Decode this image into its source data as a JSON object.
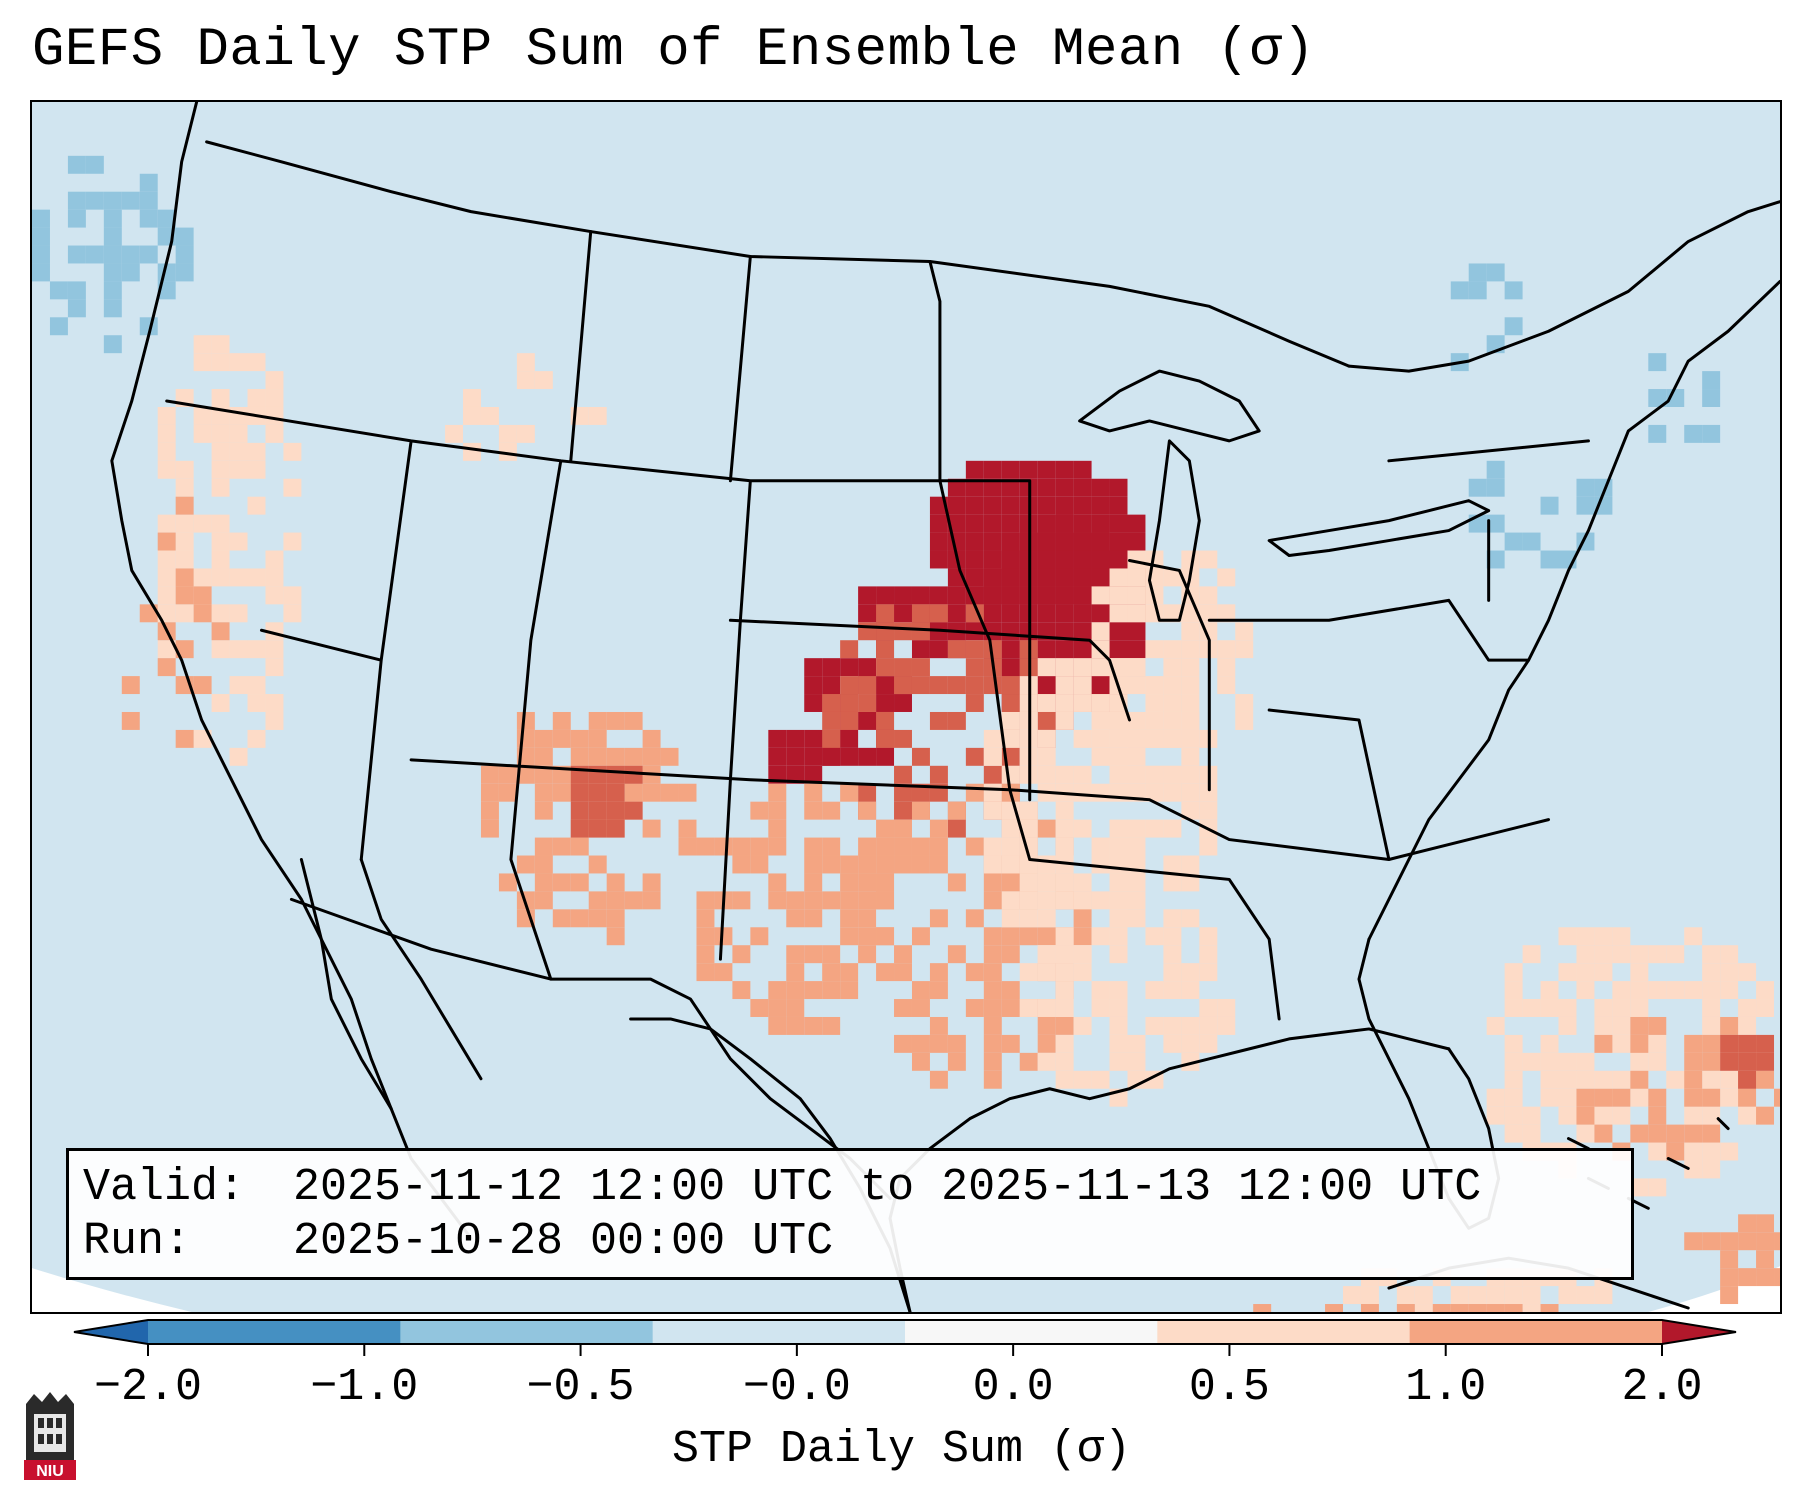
{
  "title": "GEFS Daily STP Sum of Ensemble Mean (σ)",
  "info": {
    "valid_label": "Valid:",
    "valid_value": "2025-11-12 12:00 UTC to 2025-11-13 12:00 UTC",
    "run_label": "Run:",
    "run_value": "2025-10-28 00:00 UTC"
  },
  "colorbar": {
    "title": "STP Daily Sum (σ)",
    "ticks": [
      "−2.0",
      "−1.0",
      "−0.5",
      "−0.0",
      "0.0",
      "0.5",
      "1.0",
      "2.0"
    ],
    "colors": [
      "#4590c2",
      "#92c5de",
      "#d1e5f0",
      "#f7f7f7",
      "#fddbc7",
      "#f4a582",
      "#d6604d",
      "#b2182b"
    ]
  },
  "logo": {
    "text": "NIU"
  },
  "map": {
    "background_color": "#d1e5f0",
    "anomaly_regions": [
      {
        "region": "Iowa / northern Missouri / western Illinois",
        "class": "≥ 2.0"
      },
      {
        "region": "Kansas / Oklahoma diagonal band",
        "class": "1.0 to 2.0"
      },
      {
        "region": "Texas / Oklahoma / Arkansas",
        "class": "0.5 to 1.0"
      },
      {
        "region": "Arizona / New Mexico",
        "class": "0.5 to 1.0"
      },
      {
        "region": "Pacific Northwest coast",
        "class": "−1.0 to −0.5"
      },
      {
        "region": "Northeast / Great Lakes",
        "class": "−1.0 to −0.5"
      },
      {
        "region": "Western Atlantic / Bahamas",
        "class": "0.0 to 1.0"
      }
    ]
  }
}
